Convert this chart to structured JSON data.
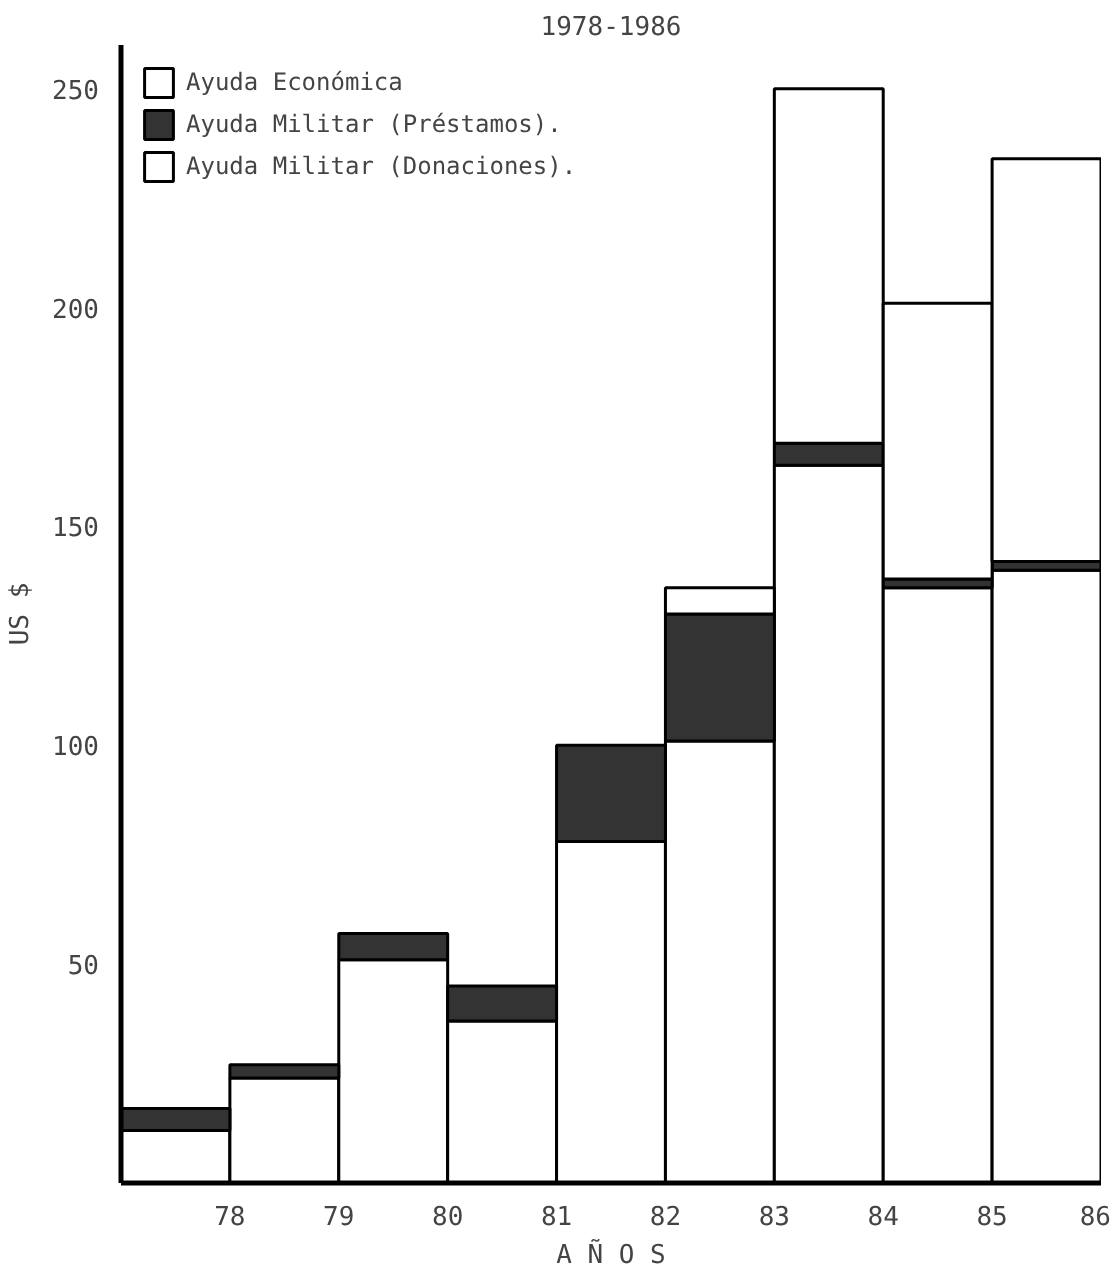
{
  "chart_data": {
    "type": "bar",
    "title": "1978-1986",
    "ylabel": "US $",
    "xlabel": "A Ñ O S",
    "categories": [
      "78",
      "79",
      "80",
      "81",
      "82",
      "83",
      "84",
      "85",
      "86"
    ],
    "stacked": true,
    "series": [
      {
        "name": "Ayuda Económica",
        "color": "#ffffff",
        "values": [
          12,
          24,
          51,
          37,
          78,
          101,
          164,
          136,
          140
        ]
      },
      {
        "name": "Ayuda Militar (Préstamos).",
        "color": "#333333",
        "values": [
          5,
          3,
          6,
          8,
          22,
          29,
          5,
          2,
          2
        ]
      },
      {
        "name": "Ayuda Militar (Donaciones).",
        "color": "#ffffff",
        "values": [
          null,
          null,
          null,
          null,
          null,
          6,
          81,
          63,
          92
        ]
      }
    ],
    "ylim": [
      0,
      260
    ],
    "yticks": [
      50,
      100,
      150,
      200,
      250
    ],
    "grid": false,
    "legend": "top left"
  }
}
